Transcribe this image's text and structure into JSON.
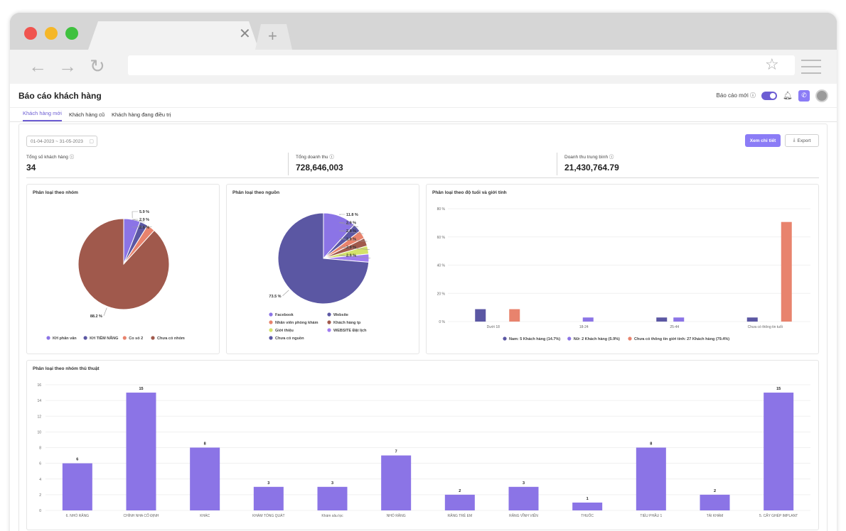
{
  "app": {
    "title": "Báo cáo khách hàng",
    "new_report_label": "Báo cáo mới ⓘ",
    "accent": "#6c5dd3"
  },
  "tabs": [
    {
      "label": "Khách hàng mới",
      "active": true
    },
    {
      "label": "Khách hàng cũ",
      "active": false
    },
    {
      "label": "Khách hàng đang điều trị",
      "active": false
    }
  ],
  "toolbar": {
    "date_range": "01-04-2023  ~  31-05-2023",
    "detail_button": "Xem chi tiết",
    "export_button": "Export"
  },
  "stats": [
    {
      "label": "Tổng số khách hàng ⓘ",
      "value": "34"
    },
    {
      "label": "Tổng doanh thu ⓘ",
      "value": "728,646,003"
    },
    {
      "label": "Doanh thu trung bình ⓘ",
      "value": "21,430,764.79"
    }
  ],
  "chart_data": [
    {
      "id": "pie_group",
      "type": "pie",
      "title": "Phân loại theo nhóm",
      "slices": [
        {
          "label": "KH phân vân",
          "value": 5.9,
          "text": "5.9 %",
          "color": "#8b74e6"
        },
        {
          "label": "KH TIỀM NĂNG",
          "value": 2.9,
          "text": "2.9 %",
          "color": "#5b57a3"
        },
        {
          "label": "Co sỏ 2",
          "value": 2.9,
          "text": "2.9 %",
          "color": "#e8836d"
        },
        {
          "label": "Chưa có nhóm",
          "value": 88.2,
          "text": "88.2 %",
          "color": "#a0594c"
        }
      ]
    },
    {
      "id": "pie_source",
      "type": "pie",
      "title": "Phân loại theo nguồn",
      "slices": [
        {
          "label": "Facebook",
          "value": 11.8,
          "text": "11.8 %",
          "color": "#8b74e6"
        },
        {
          "label": "Website",
          "value": 2.9,
          "text": "2.9 %",
          "color": "#5b57a3"
        },
        {
          "label": "Nhân viên phòng khám",
          "value": 2.9,
          "text": "2.9 %",
          "color": "#e8836d"
        },
        {
          "label": "Khách hàng tp",
          "value": 2.9,
          "text": "2.9 %",
          "color": "#a0594c"
        },
        {
          "label": "Giới thiệu",
          "value": 2.9,
          "text": "2.9 %",
          "color": "#d4e26a"
        },
        {
          "label": "WEBSITE Đặt lịch",
          "value": 2.9,
          "text": "2.9 %",
          "color": "#a07df0"
        },
        {
          "label": "Chưa có nguồn",
          "value": 73.5,
          "text": "73.5 %",
          "color": "#5b57a3"
        }
      ]
    },
    {
      "id": "bar_age_gender",
      "type": "bar",
      "title": "Phân loại theo độ tuổi và giới tính",
      "categories": [
        "Dưới 18",
        "18-24",
        "25-44",
        "Chưa có thông tin tuổi"
      ],
      "ylim": [
        0,
        80
      ],
      "yticks": [
        "0 %",
        "20 %",
        "40 %",
        "60 %",
        "80 %"
      ],
      "series": [
        {
          "name": "Nam: 5 Khách hàng (14.7%)",
          "color": "#5b57a3",
          "values": [
            8.8,
            0,
            2.9,
            2.9
          ]
        },
        {
          "name": "Nữ: 2 Khách hàng (5.9%)",
          "color": "#8b74e6",
          "values": [
            0,
            2.9,
            2.9,
            0
          ]
        },
        {
          "name": "Chưa có thông tin giới tính: 27 Khách hàng (79.4%)",
          "color": "#e8836d",
          "values": [
            8.8,
            0,
            0,
            70.6
          ]
        }
      ]
    },
    {
      "id": "bar_procedure",
      "type": "bar",
      "title": "Phân loại theo nhóm thủ thuật",
      "categories": [
        "6. NHỔ RĂNG",
        "CHỈNH NHA CỐ ĐỊNH",
        "KHÁC",
        "KHÁM TỔNG QUÁT",
        "Khám sâu lọc",
        "NHỔ RĂNG",
        "RĂNG TRẺ EM",
        "RĂNG VĨNH VIỄN",
        "THUỐC",
        "TIỂU PHẪU 1",
        "TÁI KHÁM",
        "5. CẤY GHÉP IMPLANT"
      ],
      "values": [
        6,
        15,
        8,
        3,
        3,
        7,
        2,
        3,
        1,
        8,
        2,
        15
      ],
      "ylim": [
        0,
        16
      ],
      "yticks": [
        0,
        2,
        4,
        6,
        8,
        10,
        12,
        14,
        16
      ],
      "color": "#8b74e6"
    }
  ]
}
